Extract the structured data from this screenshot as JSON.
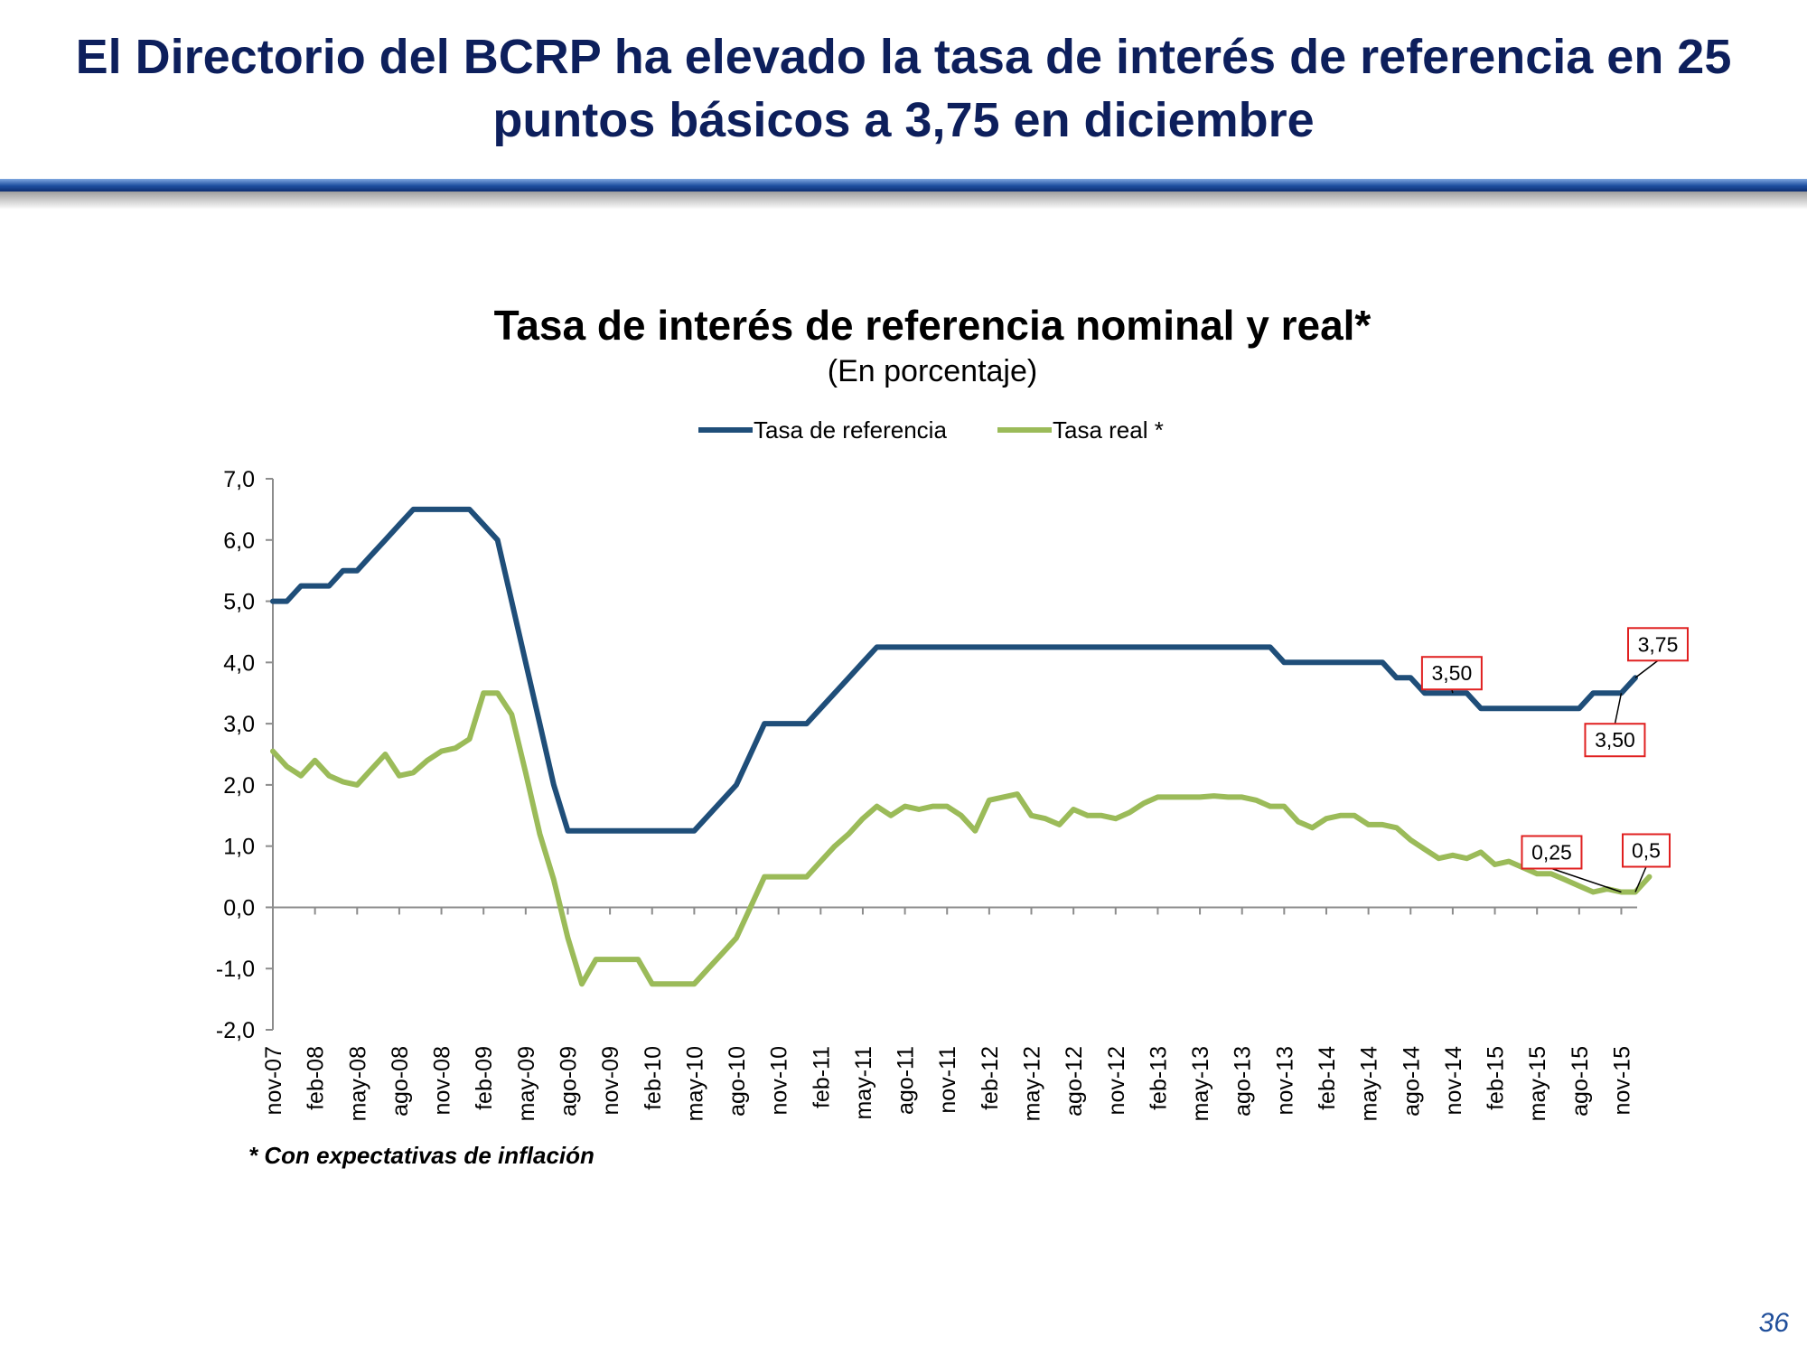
{
  "slide": {
    "title_line1": "El Directorio del BCRP ha elevado la tasa de interés de referencia en 25",
    "title_line2": "puntos básicos a 3,75 en diciembre",
    "page_number": "36",
    "footnote": "* Con expectativas de inflación",
    "title_color": "#0d1f5c",
    "rule_color": "#1e4fa0"
  },
  "chart_data": {
    "type": "line",
    "title": "Tasa de interés de referencia nominal y real*",
    "subtitle": "(En porcentaje)",
    "xlabel": "",
    "ylabel": "",
    "ylim": [
      -2,
      7
    ],
    "yticks": [
      -2,
      -1,
      0,
      1,
      2,
      3,
      4,
      5,
      6,
      7
    ],
    "ytick_labels": [
      "-2,0",
      "-1,0",
      "0,0",
      "1,0",
      "2,0",
      "3,0",
      "4,0",
      "5,0",
      "6,0",
      "7,0"
    ],
    "x_tick_labels": [
      "nov-07",
      "feb-08",
      "may-08",
      "ago-08",
      "nov-08",
      "feb-09",
      "may-09",
      "ago-09",
      "nov-09",
      "feb-10",
      "may-10",
      "ago-10",
      "nov-10",
      "feb-11",
      "may-11",
      "ago-11",
      "nov-11",
      "feb-12",
      "may-12",
      "ago-12",
      "nov-12",
      "feb-13",
      "may-13",
      "ago-13",
      "nov-13",
      "feb-14",
      "may-14",
      "ago-14",
      "nov-14",
      "feb-15",
      "may-15",
      "ago-15",
      "nov-15"
    ],
    "x_start": "nov-07",
    "x_end": "dic-15",
    "legend_position": "top",
    "series": [
      {
        "name": "Tasa de referencia",
        "color": "#1f4e79",
        "values": [
          5.0,
          5.0,
          5.25,
          5.25,
          5.25,
          5.5,
          5.5,
          5.75,
          6.0,
          6.25,
          6.5,
          6.5,
          6.5,
          6.5,
          6.5,
          6.25,
          6.0,
          5.0,
          4.0,
          3.0,
          2.0,
          1.25,
          1.25,
          1.25,
          1.25,
          1.25,
          1.25,
          1.25,
          1.25,
          1.25,
          1.25,
          1.5,
          1.75,
          2.0,
          2.5,
          3.0,
          3.0,
          3.0,
          3.0,
          3.25,
          3.5,
          3.75,
          4.0,
          4.25,
          4.25,
          4.25,
          4.25,
          4.25,
          4.25,
          4.25,
          4.25,
          4.25,
          4.25,
          4.25,
          4.25,
          4.25,
          4.25,
          4.25,
          4.25,
          4.25,
          4.25,
          4.25,
          4.25,
          4.25,
          4.25,
          4.25,
          4.25,
          4.25,
          4.25,
          4.25,
          4.25,
          4.25,
          4.0,
          4.0,
          4.0,
          4.0,
          4.0,
          4.0,
          4.0,
          4.0,
          3.75,
          3.75,
          3.5,
          3.5,
          3.5,
          3.5,
          3.25,
          3.25,
          3.25,
          3.25,
          3.25,
          3.25,
          3.25,
          3.25,
          3.5,
          3.5,
          3.5,
          3.75
        ]
      },
      {
        "name": "Tasa real *",
        "color": "#9bbb59",
        "values": [
          2.55,
          2.3,
          2.15,
          2.4,
          2.15,
          2.05,
          2.0,
          2.25,
          2.5,
          2.15,
          2.2,
          2.4,
          2.55,
          2.6,
          2.75,
          3.5,
          3.5,
          3.15,
          2.2,
          1.2,
          0.45,
          -0.5,
          -1.25,
          -0.85,
          -0.85,
          -0.85,
          -0.85,
          -1.25,
          -1.25,
          -1.25,
          -1.25,
          -1.0,
          -0.75,
          -0.5,
          0.0,
          0.5,
          0.5,
          0.5,
          0.5,
          0.75,
          1.0,
          1.2,
          1.45,
          1.65,
          1.5,
          1.65,
          1.6,
          1.65,
          1.65,
          1.5,
          1.25,
          1.75,
          1.8,
          1.85,
          1.5,
          1.45,
          1.35,
          1.6,
          1.5,
          1.5,
          1.45,
          1.55,
          1.7,
          1.8,
          1.8,
          1.8,
          1.8,
          1.82,
          1.8,
          1.8,
          1.75,
          1.65,
          1.65,
          1.4,
          1.3,
          1.45,
          1.5,
          1.5,
          1.35,
          1.35,
          1.3,
          1.1,
          0.95,
          0.8,
          0.85,
          0.8,
          0.9,
          0.7,
          0.75,
          0.65,
          0.55,
          0.55,
          0.45,
          0.35,
          0.25,
          0.3,
          0.25,
          0.25,
          0.5
        ]
      }
    ],
    "annotations": [
      {
        "text": "3,50",
        "series": "Tasa de referencia",
        "point": "nov-14"
      },
      {
        "text": "3,75",
        "series": "Tasa de referencia",
        "point": "dic-15"
      },
      {
        "text": "3,50",
        "series": "Tasa de referencia",
        "point": "nov-15"
      },
      {
        "text": "0,25",
        "series": "Tasa real *",
        "point": "nov-15"
      },
      {
        "text": "0,5",
        "series": "Tasa real *",
        "point": "dic-15"
      }
    ],
    "annotation_border_color": "#e02020"
  }
}
